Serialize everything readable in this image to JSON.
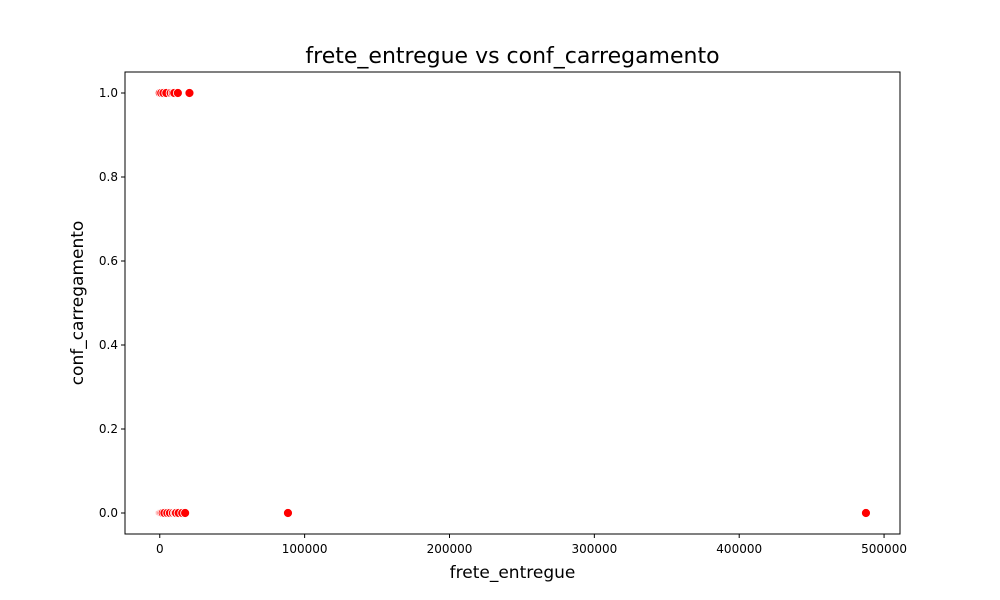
{
  "chart_data": {
    "type": "scatter",
    "title": "frete_entregue vs conf_carregamento",
    "xlabel": "frete_entregue",
    "ylabel": "conf_carregamento",
    "xlim": [
      -24000,
      511000
    ],
    "ylim": [
      -0.05,
      1.05
    ],
    "xticks": [
      0,
      100000,
      200000,
      300000,
      400000,
      500000
    ],
    "xtick_labels": [
      "0",
      "100000",
      "200000",
      "300000",
      "400000",
      "500000"
    ],
    "yticks": [
      0.0,
      0.2,
      0.4,
      0.6,
      0.8,
      1.0
    ],
    "ytick_labels": [
      "0.0",
      "0.2",
      "0.4",
      "0.6",
      "0.8",
      "1.0"
    ],
    "grid": false,
    "legend": "none",
    "marker_color": "#ff0000",
    "marker_edge_color": "#ffffff",
    "points": [
      {
        "x": 0,
        "y": 0
      },
      {
        "x": 500,
        "y": 0
      },
      {
        "x": 1200,
        "y": 0
      },
      {
        "x": 2000,
        "y": 0
      },
      {
        "x": 3200,
        "y": 0
      },
      {
        "x": 5200,
        "y": 0
      },
      {
        "x": 7000,
        "y": 0
      },
      {
        "x": 9000,
        "y": 0
      },
      {
        "x": 10500,
        "y": 0
      },
      {
        "x": 11200,
        "y": 0
      },
      {
        "x": 13000,
        "y": 0
      },
      {
        "x": 15500,
        "y": 0
      },
      {
        "x": 17500,
        "y": 0
      },
      {
        "x": 88500,
        "y": 0
      },
      {
        "x": 487500,
        "y": 0
      },
      {
        "x": 0,
        "y": 1
      },
      {
        "x": 1000,
        "y": 1
      },
      {
        "x": 2500,
        "y": 1
      },
      {
        "x": 4500,
        "y": 1
      },
      {
        "x": 7500,
        "y": 1
      },
      {
        "x": 9000,
        "y": 1
      },
      {
        "x": 10000,
        "y": 1
      },
      {
        "x": 12500,
        "y": 1
      },
      {
        "x": 20500,
        "y": 1
      }
    ]
  }
}
